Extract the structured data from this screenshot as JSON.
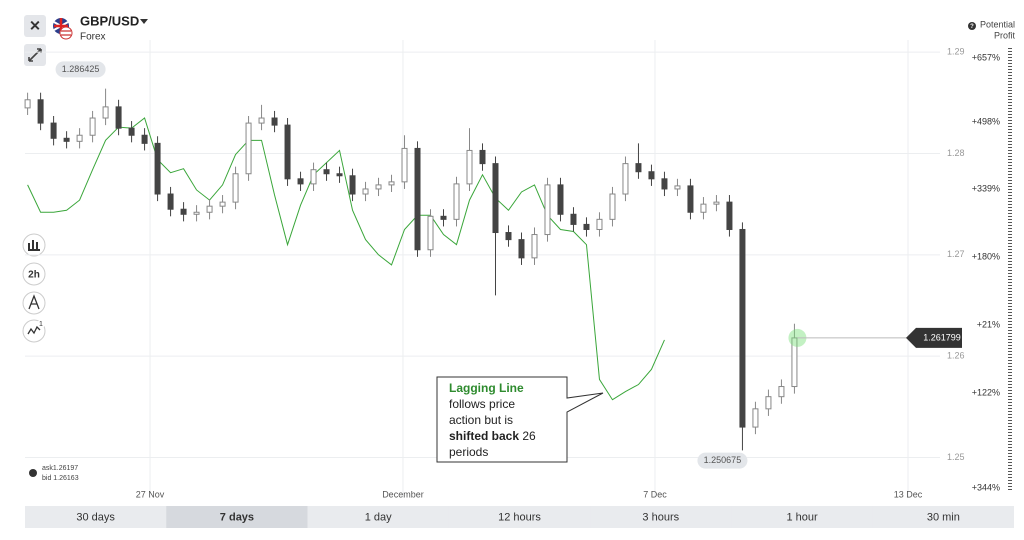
{
  "header": {
    "symbol": "GBP/USD",
    "market": "Forex",
    "potential_profit": [
      "Potential",
      "Profit"
    ],
    "timeframe": "2h"
  },
  "quote": {
    "ask": "ask1.26197",
    "bid": "bid 1.26163"
  },
  "profit_labels": [
    "+657%",
    "+498%",
    "+339%",
    "+180%",
    "+21%",
    "+122%",
    "+344%"
  ],
  "annotation": {
    "title": "Lagging Line",
    "lines": [
      "follows price",
      "action but is"
    ],
    "bold": "shifted back",
    "after_bold": "26",
    "last": "periods"
  },
  "tabs": {
    "items": [
      "30 days",
      "7 days",
      "1 day",
      "12 hours",
      "3 hours",
      "1 hour",
      "30 min"
    ],
    "active": "7 days"
  },
  "chart_data": {
    "type": "candlestick",
    "xlim": [
      -0.2,
      70.2
    ],
    "xticks": [
      {
        "value": 9.42,
        "label": "27 Nov"
      },
      {
        "value": 28.88,
        "label": "December"
      },
      {
        "value": 48.27,
        "label": "7 Dec"
      },
      {
        "value": 67.74,
        "label": "13 Dec"
      }
    ],
    "ylim": [
      1.246,
      1.2912
    ],
    "yticks": [
      1.25,
      1.26,
      1.27,
      1.28,
      1.29
    ],
    "grid": true,
    "high_label": 1.286425,
    "low_label": 1.250675,
    "current_price": 1.261799,
    "up_color": "#ffffff",
    "down_color": "#444444",
    "open": [
      1.2845,
      1.2853,
      1.283,
      1.2815,
      1.2812,
      1.2818,
      1.2835,
      1.2846,
      1.2825,
      1.2818,
      1.281,
      1.276,
      1.2745,
      1.274,
      1.2742,
      1.2748,
      1.2752,
      1.278,
      1.283,
      1.2835,
      1.2828,
      1.2775,
      1.277,
      1.2784,
      1.278,
      1.2778,
      1.276,
      1.2765,
      1.2769,
      1.2772,
      1.2805,
      1.2705,
      1.2738,
      1.2735,
      1.277,
      1.2803,
      1.279,
      1.2722,
      1.2715,
      1.2697,
      1.272,
      1.2769,
      1.274,
      1.273,
      1.2725,
      1.2735,
      1.276,
      1.279,
      1.2782,
      1.2775,
      1.2765,
      1.2768,
      1.2742,
      1.275,
      1.2752,
      1.2725,
      1.253,
      1.2548,
      1.256,
      1.257
    ],
    "high": [
      1.286,
      1.286,
      1.2837,
      1.2822,
      1.2825,
      1.2842,
      1.2864,
      1.2853,
      1.2832,
      1.2825,
      1.2817,
      1.2767,
      1.2752,
      1.2749,
      1.2755,
      1.2759,
      1.2787,
      1.2837,
      1.2848,
      1.2842,
      1.2835,
      1.2782,
      1.2791,
      1.2791,
      1.2787,
      1.2785,
      1.2772,
      1.2776,
      1.2779,
      1.2818,
      1.2812,
      1.2745,
      1.2745,
      1.2777,
      1.2825,
      1.281,
      1.2797,
      1.2729,
      1.2722,
      1.2727,
      1.2776,
      1.2776,
      1.2747,
      1.2737,
      1.2742,
      1.2767,
      1.2797,
      1.281,
      1.2789,
      1.2782,
      1.2775,
      1.2775,
      1.2757,
      1.2759,
      1.2759,
      1.2732,
      1.2555,
      1.2567,
      1.2577,
      1.2632
    ],
    "low": [
      1.2838,
      1.2823,
      1.2808,
      1.2805,
      1.2805,
      1.2811,
      1.2828,
      1.2818,
      1.2811,
      1.2803,
      1.2753,
      1.2738,
      1.2733,
      1.2733,
      1.2735,
      1.2741,
      1.2745,
      1.2773,
      1.2823,
      1.2821,
      1.2768,
      1.2763,
      1.2763,
      1.2773,
      1.2771,
      1.2753,
      1.2753,
      1.2758,
      1.2762,
      1.2765,
      1.2698,
      1.2698,
      1.2728,
      1.2728,
      1.2763,
      1.2783,
      1.266,
      1.2708,
      1.269,
      1.269,
      1.2713,
      1.2733,
      1.2723,
      1.2718,
      1.2718,
      1.2728,
      1.2753,
      1.2775,
      1.2768,
      1.2758,
      1.2758,
      1.2735,
      1.2735,
      1.2743,
      1.2718,
      1.2507,
      1.2523,
      1.2541,
      1.2553,
      1.2563
    ],
    "close": [
      1.2853,
      1.283,
      1.2815,
      1.2812,
      1.2818,
      1.2835,
      1.2846,
      1.2825,
      1.2818,
      1.281,
      1.276,
      1.2745,
      1.274,
      1.2742,
      1.2748,
      1.2752,
      1.278,
      1.283,
      1.2835,
      1.2828,
      1.2775,
      1.277,
      1.2784,
      1.278,
      1.2778,
      1.276,
      1.2765,
      1.2769,
      1.2772,
      1.2805,
      1.2705,
      1.2738,
      1.2735,
      1.277,
      1.2803,
      1.279,
      1.2722,
      1.2715,
      1.2697,
      1.272,
      1.2769,
      1.274,
      1.273,
      1.2725,
      1.2735,
      1.276,
      1.279,
      1.2782,
      1.2775,
      1.2765,
      1.2768,
      1.2742,
      1.275,
      1.2752,
      1.2725,
      1.253,
      1.2548,
      1.256,
      1.257,
      1.2618
    ],
    "lagging_line": {
      "color": "#3aa63a",
      "values": [
        1.2769,
        1.2742,
        1.2742,
        1.2744,
        1.2754,
        1.2784,
        1.2813,
        1.2826,
        1.2825,
        1.2835,
        1.2794,
        1.2781,
        1.2785,
        1.2764,
        1.2754,
        1.2769,
        1.2799,
        1.2813,
        1.2813,
        1.2759,
        1.271,
        1.2749,
        1.2779,
        1.2791,
        1.2803,
        1.2744,
        1.2715,
        1.27,
        1.269,
        1.2725,
        1.2739,
        1.2739,
        1.272,
        1.271,
        1.2754,
        1.2779,
        1.2756,
        1.2744,
        1.2762,
        1.2769,
        1.2739,
        1.2725,
        1.2723,
        1.271,
        1.2577,
        1.2557,
        1.2565,
        1.2572,
        1.2587,
        1.2616,
        null,
        null,
        null,
        null,
        null,
        null,
        null,
        null,
        null,
        null
      ]
    }
  }
}
